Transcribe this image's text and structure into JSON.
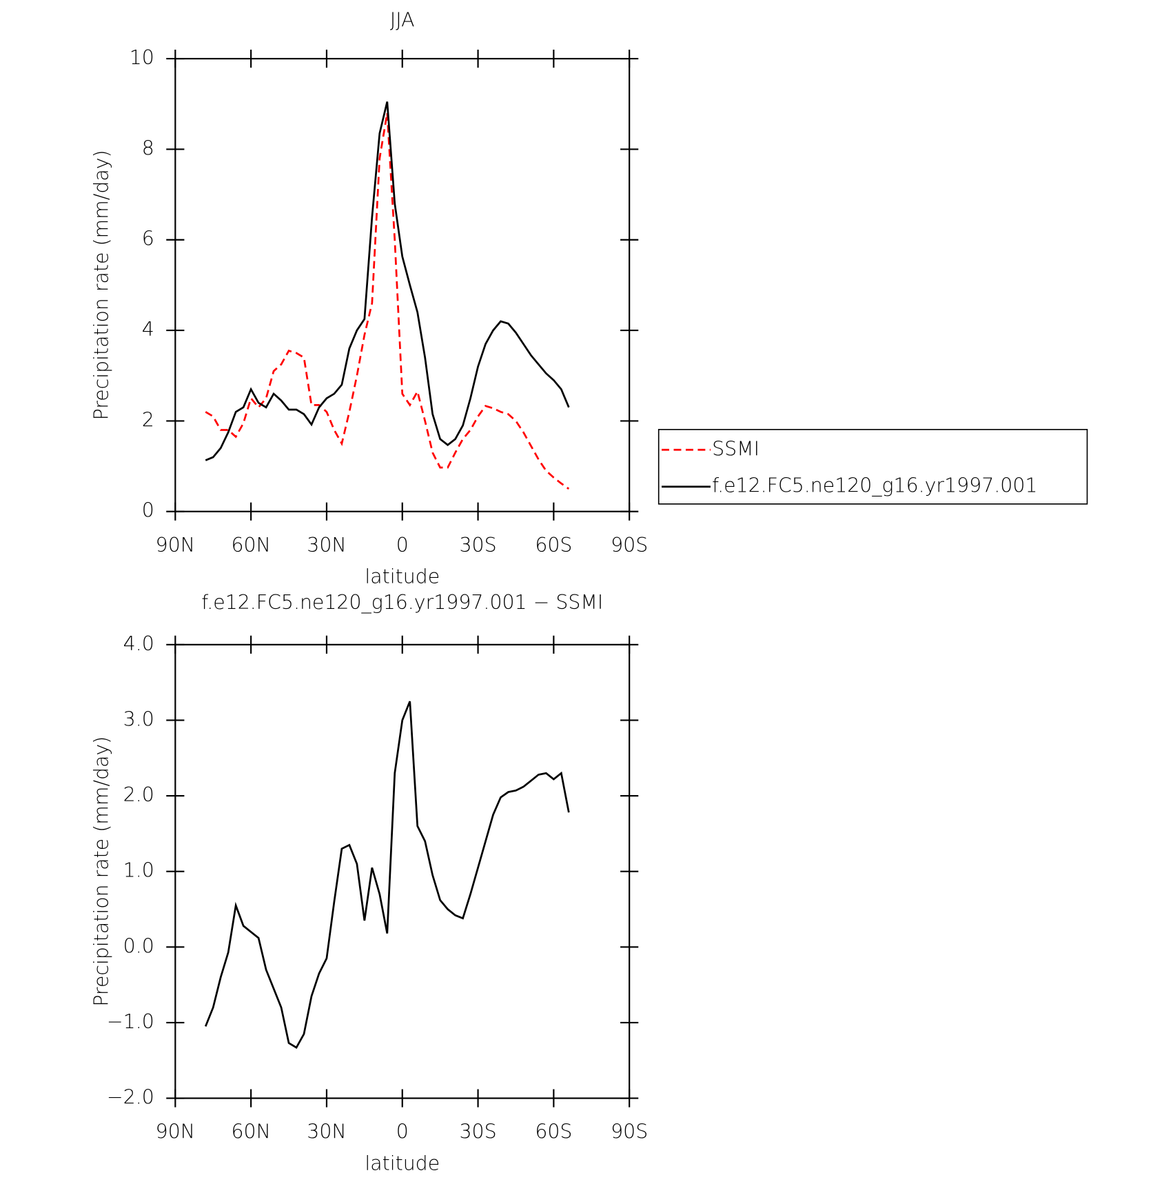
{
  "chart_data": [
    {
      "type": "line",
      "title": "JJA",
      "xlabel": "latitude",
      "ylabel": "Precipitation rate (mm/day)",
      "x": [
        78,
        75,
        72,
        69,
        66,
        63,
        60,
        57,
        54,
        51,
        48,
        45,
        42,
        39,
        36,
        33,
        30,
        27,
        24,
        21,
        18,
        15,
        12,
        9,
        6,
        3,
        0,
        -3,
        -6,
        -9,
        -12,
        -15,
        -18,
        -21,
        -24,
        -27,
        -30,
        -33,
        -36,
        -39,
        -42,
        -45,
        -48,
        -51,
        -54,
        -57,
        -60,
        -63,
        -66
      ],
      "series": [
        {
          "name": "SSMI",
          "color": "#ff0000",
          "line_style": "dashed",
          "values": [
            2.2,
            2.1,
            1.8,
            1.8,
            1.65,
            1.95,
            2.5,
            2.3,
            2.5,
            3.1,
            3.25,
            3.55,
            3.5,
            3.4,
            2.35,
            2.35,
            2.2,
            1.8,
            1.5,
            2.2,
            3.0,
            3.9,
            4.6,
            7.8,
            8.8,
            6.0,
            2.6,
            2.35,
            2.65,
            2.0,
            1.3,
            0.97,
            0.97,
            1.3,
            1.6,
            1.8,
            2.1,
            2.33,
            2.28,
            2.2,
            2.15,
            2.0,
            1.75,
            1.45,
            1.15,
            0.9,
            0.75,
            0.62,
            0.5
          ]
        },
        {
          "name": "f.e12.FC5.ne120_g16.yr1997.001",
          "color": "#000000",
          "line_style": "solid",
          "values": [
            1.13,
            1.2,
            1.4,
            1.75,
            2.2,
            2.3,
            2.7,
            2.4,
            2.3,
            2.6,
            2.45,
            2.25,
            2.25,
            2.15,
            1.92,
            2.3,
            2.5,
            2.6,
            2.8,
            3.6,
            4.0,
            4.25,
            6.5,
            8.35,
            9.05,
            6.8,
            5.63,
            5.0,
            4.4,
            3.4,
            2.15,
            1.6,
            1.47,
            1.6,
            1.9,
            2.5,
            3.2,
            3.7,
            4.0,
            4.2,
            4.15,
            3.95,
            3.7,
            3.45,
            3.25,
            3.05,
            2.9,
            2.7,
            2.3
          ]
        }
      ],
      "xlim": [
        90,
        -90
      ],
      "xticks": [
        {
          "value": 90,
          "label": "90N"
        },
        {
          "value": 60,
          "label": "60N"
        },
        {
          "value": 30,
          "label": "30N"
        },
        0,
        {
          "value": -30,
          "label": "30S"
        },
        {
          "value": -60,
          "label": "60S"
        },
        {
          "value": -90,
          "label": "90S"
        }
      ],
      "ylim": [
        0,
        10
      ],
      "yticks": [
        0,
        2,
        4,
        6,
        8,
        10
      ],
      "legend": "right"
    },
    {
      "type": "line",
      "title": "f.e12.FC5.ne120_g16.yr1997.001 − SSMI",
      "xlabel": "latitude",
      "ylabel": "Precipitation rate (mm/day)",
      "x": [
        78,
        75,
        72,
        69,
        66,
        63,
        60,
        57,
        54,
        51,
        48,
        45,
        42,
        39,
        36,
        33,
        30,
        27,
        24,
        21,
        18,
        15,
        12,
        9,
        6,
        3,
        0,
        -3,
        -6,
        -9,
        -12,
        -15,
        -18,
        -21,
        -24,
        -27,
        -30,
        -33,
        -36,
        -39,
        -42,
        -45,
        -48,
        -51,
        -54,
        -57,
        -60,
        -63,
        -66
      ],
      "color": "#000000",
      "values": [
        -1.05,
        -0.8,
        -0.4,
        -0.07,
        0.55,
        0.28,
        0.2,
        0.12,
        -0.3,
        -0.55,
        -0.8,
        -1.27,
        -1.33,
        -1.15,
        -0.65,
        -0.35,
        -0.15,
        0.6,
        1.3,
        1.35,
        1.1,
        0.35,
        1.05,
        0.7,
        0.18,
        2.3,
        3.0,
        3.25,
        1.6,
        1.4,
        0.95,
        0.62,
        0.5,
        0.42,
        0.38,
        0.7,
        1.05,
        1.4,
        1.75,
        1.98,
        2.05,
        2.07,
        2.12,
        2.2,
        2.28,
        2.3,
        2.22,
        2.3,
        1.78
      ],
      "xlim": [
        90,
        -90
      ],
      "xticks": [
        {
          "value": 90,
          "label": "90N"
        },
        {
          "value": 60,
          "label": "60N"
        },
        {
          "value": 30,
          "label": "30N"
        },
        0,
        {
          "value": -30,
          "label": "30S"
        },
        {
          "value": -60,
          "label": "60S"
        },
        {
          "value": -90,
          "label": "90S"
        }
      ],
      "ylim": [
        -2,
        4
      ],
      "yticks": [
        {
          "value": -2,
          "label": "−2.0"
        },
        {
          "value": -1,
          "label": "−1.0"
        },
        {
          "value": 0,
          "label": "0.0"
        },
        {
          "value": 1,
          "label": "1.0"
        },
        {
          "value": 2,
          "label": "2.0"
        },
        {
          "value": 3,
          "label": "3.0"
        },
        {
          "value": 4,
          "label": "4.0"
        }
      ]
    }
  ]
}
